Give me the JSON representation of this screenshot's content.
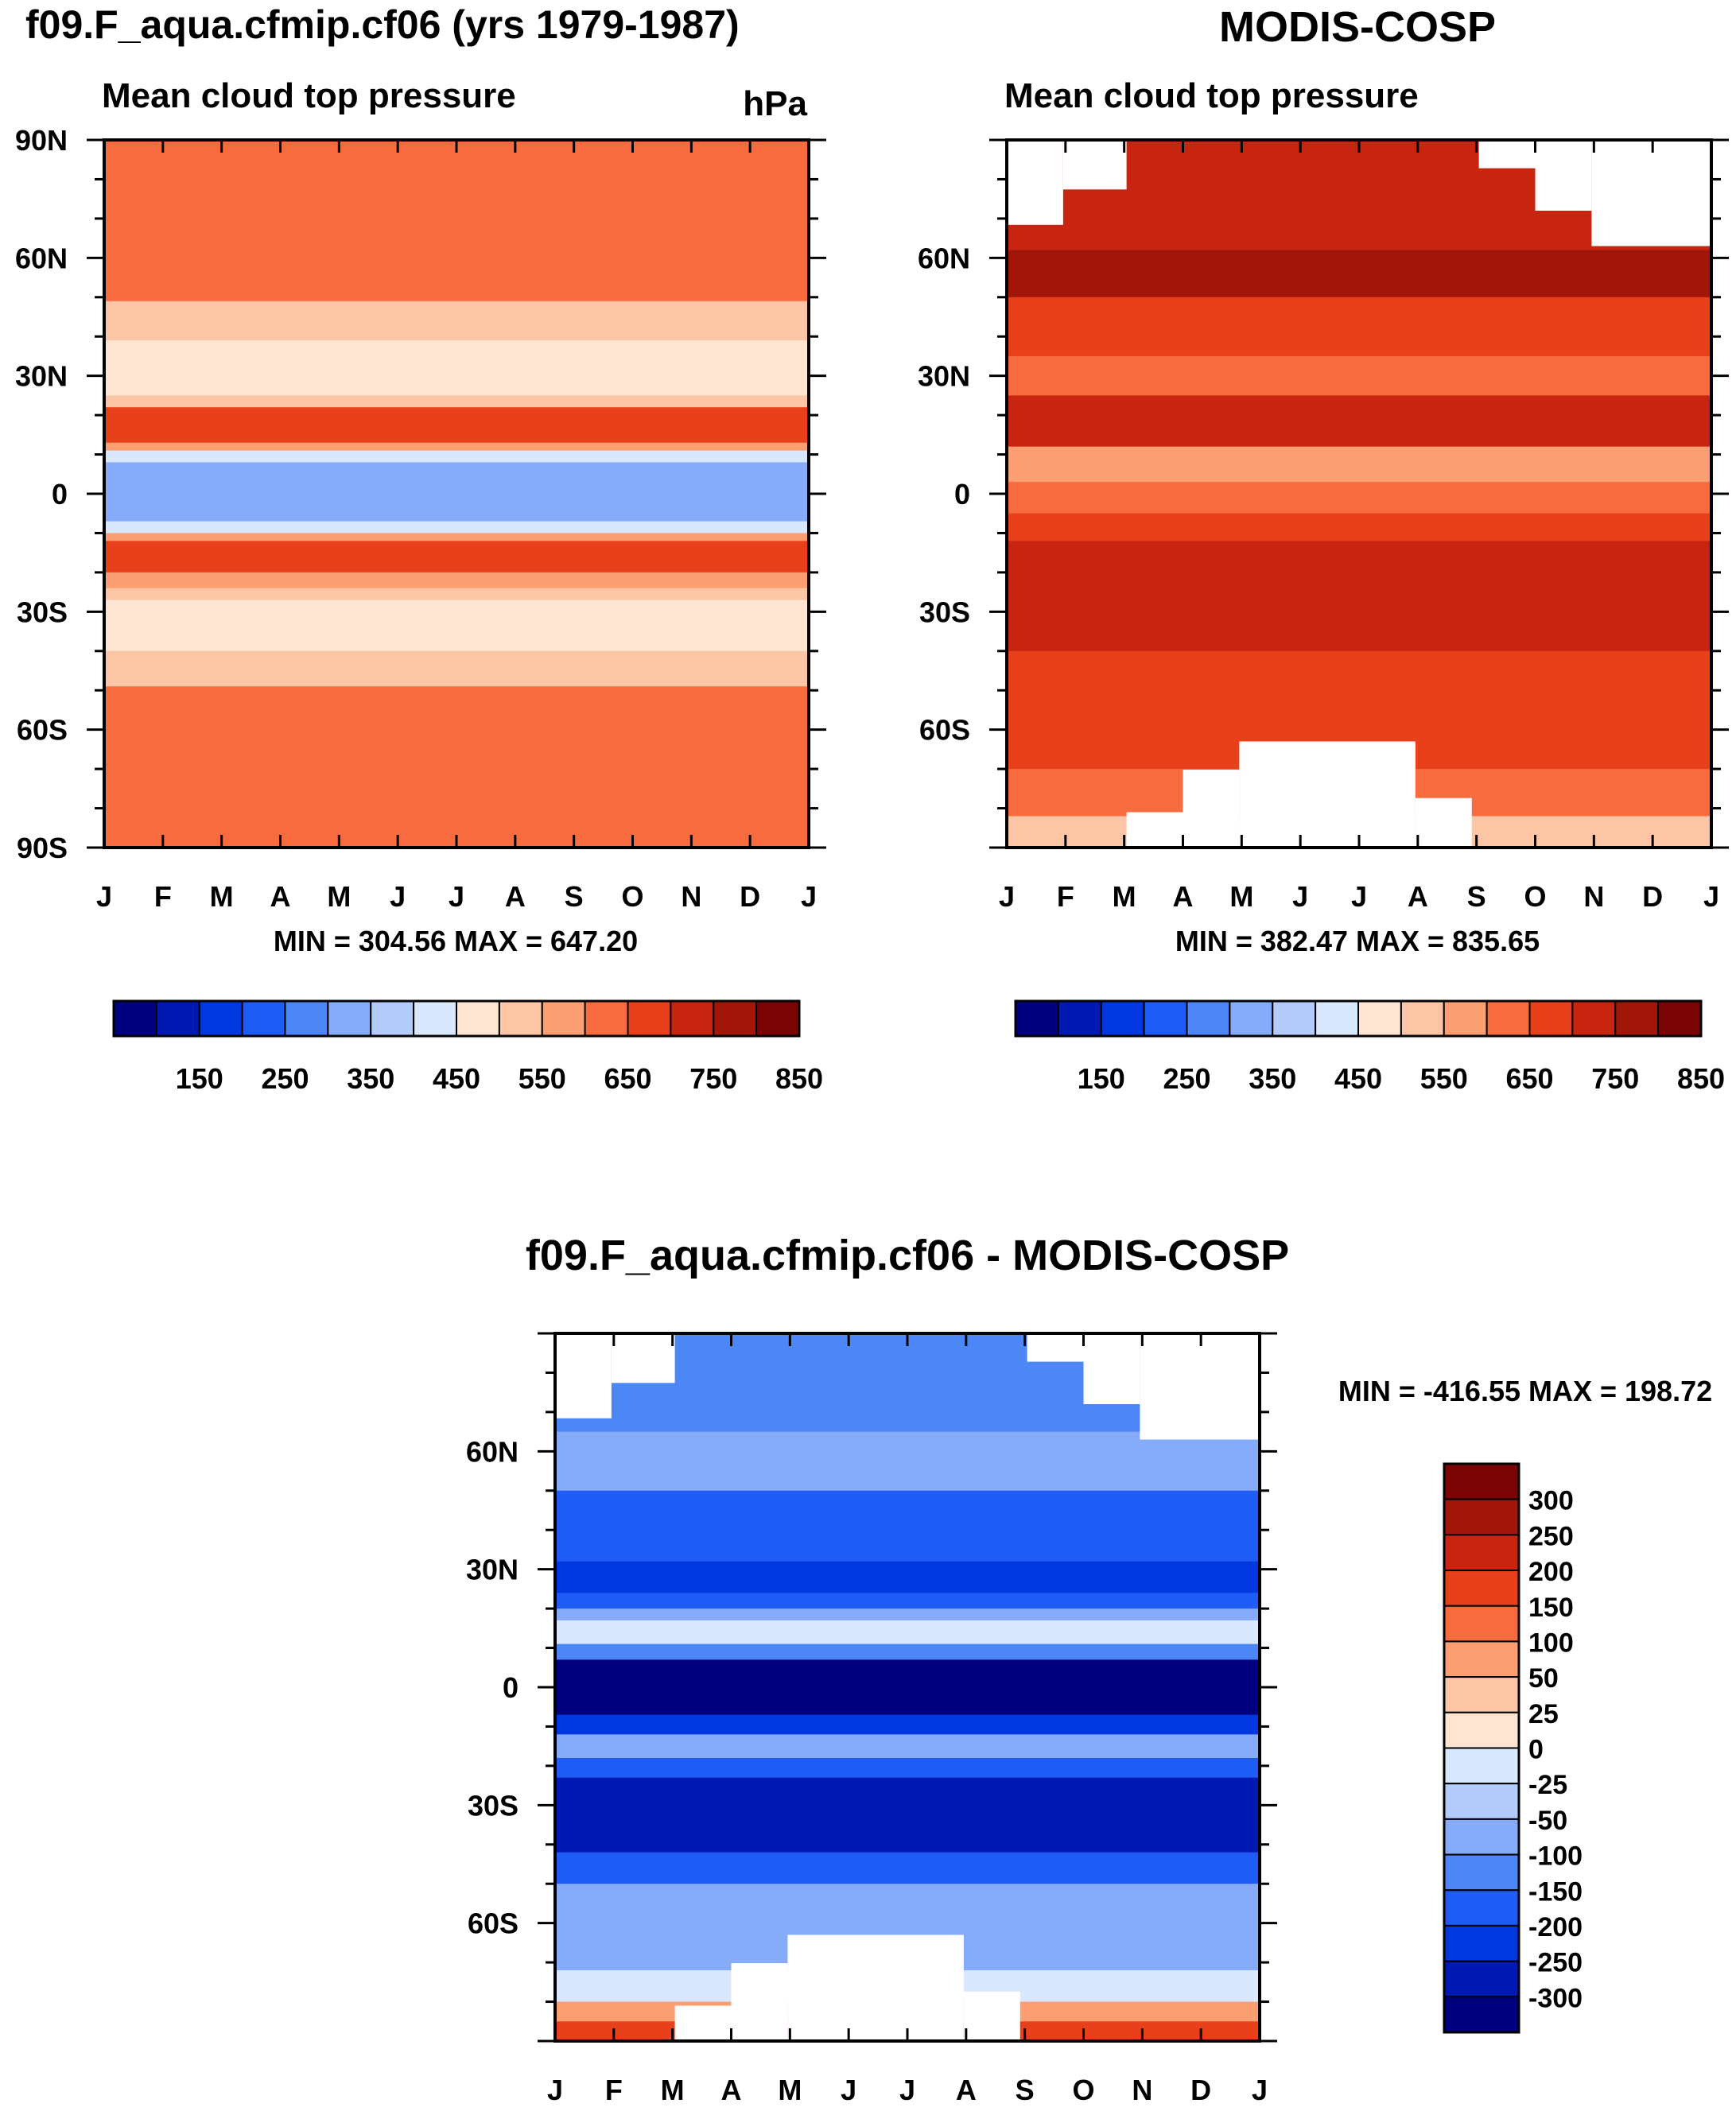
{
  "chart_data": [
    {
      "type": "heatmap",
      "panel": "model",
      "title": "f09.F_aqua.cfmip.cf06 (yrs 1979-1987)",
      "subtitle": "Mean cloud top pressure",
      "units": "hPa",
      "x_tick_labels": [
        "J",
        "F",
        "M",
        "A",
        "M",
        "J",
        "J",
        "A",
        "S",
        "O",
        "N",
        "D",
        "J"
      ],
      "y_tick_labels": [
        "90N",
        "60N",
        "30N",
        "0",
        "30S",
        "60S",
        "90S"
      ],
      "ylim": [
        -90,
        90
      ],
      "stats": "MIN = 304.56 MAX = 647.20",
      "bands": [
        {
          "lat_top": 90,
          "lat_bottom": 49,
          "value": 625
        },
        {
          "lat_top": 49,
          "lat_bottom": 39,
          "value": 525
        },
        {
          "lat_top": 39,
          "lat_bottom": 25,
          "value": 475
        },
        {
          "lat_top": 25,
          "lat_bottom": 22,
          "value": 525
        },
        {
          "lat_top": 22,
          "lat_bottom": 13,
          "value": 675
        },
        {
          "lat_top": 13,
          "lat_bottom": 11,
          "value": 575
        },
        {
          "lat_top": 11,
          "lat_bottom": 8,
          "value": 425
        },
        {
          "lat_top": 8,
          "lat_bottom": -7,
          "value": 325
        },
        {
          "lat_top": -7,
          "lat_bottom": -10,
          "value": 425
        },
        {
          "lat_top": -10,
          "lat_bottom": -12,
          "value": 575
        },
        {
          "lat_top": -12,
          "lat_bottom": -20,
          "value": 675
        },
        {
          "lat_top": -20,
          "lat_bottom": -24,
          "value": 575
        },
        {
          "lat_top": -24,
          "lat_bottom": -27,
          "value": 525
        },
        {
          "lat_top": -27,
          "lat_bottom": -40,
          "value": 475
        },
        {
          "lat_top": -40,
          "lat_bottom": -49,
          "value": 525
        },
        {
          "lat_top": -49,
          "lat_bottom": -90,
          "value": 625
        }
      ]
    },
    {
      "type": "heatmap",
      "panel": "observation",
      "title": "MODIS-COSP",
      "subtitle": "Mean cloud top pressure",
      "x_tick_labels": [
        "J",
        "F",
        "M",
        "A",
        "M",
        "J",
        "J",
        "A",
        "S",
        "O",
        "N",
        "D",
        "J"
      ],
      "y_tick_labels": [
        "60N",
        "30N",
        "0",
        "30S",
        "60S"
      ],
      "ylim": [
        -90,
        90
      ],
      "stats": "MIN = 382.47 MAX = 835.65",
      "bands": [
        {
          "lat_top": 90,
          "lat_bottom": 62,
          "value": 725
        },
        {
          "lat_top": 62,
          "lat_bottom": 50,
          "value": 775
        },
        {
          "lat_top": 50,
          "lat_bottom": 35,
          "value": 675
        },
        {
          "lat_top": 35,
          "lat_bottom": 25,
          "value": 625
        },
        {
          "lat_top": 25,
          "lat_bottom": 12,
          "value": 725
        },
        {
          "lat_top": 12,
          "lat_bottom": 3,
          "value": 575
        },
        {
          "lat_top": 3,
          "lat_bottom": -5,
          "value": 625
        },
        {
          "lat_top": -5,
          "lat_bottom": -12,
          "value": 675
        },
        {
          "lat_top": -12,
          "lat_bottom": -40,
          "value": 725
        },
        {
          "lat_top": -40,
          "lat_bottom": -70,
          "value": 675
        },
        {
          "lat_top": -70,
          "lat_bottom": -82,
          "value": 625
        },
        {
          "lat_top": -82,
          "lat_bottom": -90,
          "value": 525
        }
      ]
    },
    {
      "type": "heatmap",
      "panel": "difference",
      "title": "f09.F_aqua.cfmip.cf06 - MODIS-COSP",
      "x_tick_labels": [
        "J",
        "F",
        "M",
        "A",
        "M",
        "J",
        "J",
        "A",
        "S",
        "O",
        "N",
        "D",
        "J"
      ],
      "y_tick_labels": [
        "60N",
        "30N",
        "0",
        "30S",
        "60S"
      ],
      "ylim": [
        -90,
        90
      ],
      "stats": "MIN = -416.55 MAX = 198.72",
      "bands": [
        {
          "lat_top": 90,
          "lat_bottom": 65,
          "value": -125
        },
        {
          "lat_top": 65,
          "lat_bottom": 50,
          "value": -75
        },
        {
          "lat_top": 50,
          "lat_bottom": 32,
          "value": -175
        },
        {
          "lat_top": 32,
          "lat_bottom": 24,
          "value": -225
        },
        {
          "lat_top": 24,
          "lat_bottom": 20,
          "value": -175
        },
        {
          "lat_top": 20,
          "lat_bottom": 17,
          "value": -75
        },
        {
          "lat_top": 17,
          "lat_bottom": 11,
          "value": -12
        },
        {
          "lat_top": 11,
          "lat_bottom": 7,
          "value": -125
        },
        {
          "lat_top": 7,
          "lat_bottom": -7,
          "value": -325
        },
        {
          "lat_top": -7,
          "lat_bottom": -12,
          "value": -225
        },
        {
          "lat_top": -12,
          "lat_bottom": -18,
          "value": -75
        },
        {
          "lat_top": -18,
          "lat_bottom": -23,
          "value": -175
        },
        {
          "lat_top": -23,
          "lat_bottom": -42,
          "value": -275
        },
        {
          "lat_top": -42,
          "lat_bottom": -50,
          "value": -175
        },
        {
          "lat_top": -50,
          "lat_bottom": -72,
          "value": -75
        },
        {
          "lat_top": -72,
          "lat_bottom": -80,
          "value": -25
        },
        {
          "lat_top": -80,
          "lat_bottom": -85,
          "value": 75
        },
        {
          "lat_top": -85,
          "lat_bottom": -90,
          "value": 175
        }
      ]
    }
  ],
  "colorbars": {
    "pressure": {
      "tick_labels": [
        "150",
        "250",
        "350",
        "450",
        "550",
        "650",
        "750",
        "850"
      ],
      "colors": [
        "#00007f",
        "#0019b3",
        "#0038e0",
        "#1f5cf5",
        "#4d86f7",
        "#85abf9",
        "#b3ccfb",
        "#d9e8fd",
        "#fde5d2",
        "#fcc5a6",
        "#fb9e72",
        "#f86b3f",
        "#e8401a",
        "#c72510",
        "#a11608",
        "#7a0403"
      ]
    },
    "difference": {
      "tick_labels": [
        "300",
        "250",
        "200",
        "150",
        "100",
        "50",
        "25",
        "0",
        "-25",
        "-50",
        "-100",
        "-150",
        "-200",
        "-250",
        "-300"
      ],
      "colors": [
        "#7a0403",
        "#a11608",
        "#c72510",
        "#e8401a",
        "#f86b3f",
        "#fb9e72",
        "#fcc5a6",
        "#fde5d2",
        "#d9e8fd",
        "#b3ccfb",
        "#85abf9",
        "#4d86f7",
        "#1f5cf5",
        "#0038e0",
        "#0019b3",
        "#00007f"
      ]
    }
  },
  "colors": {
    "missing": "#ffffff",
    "frame": "#000000"
  }
}
